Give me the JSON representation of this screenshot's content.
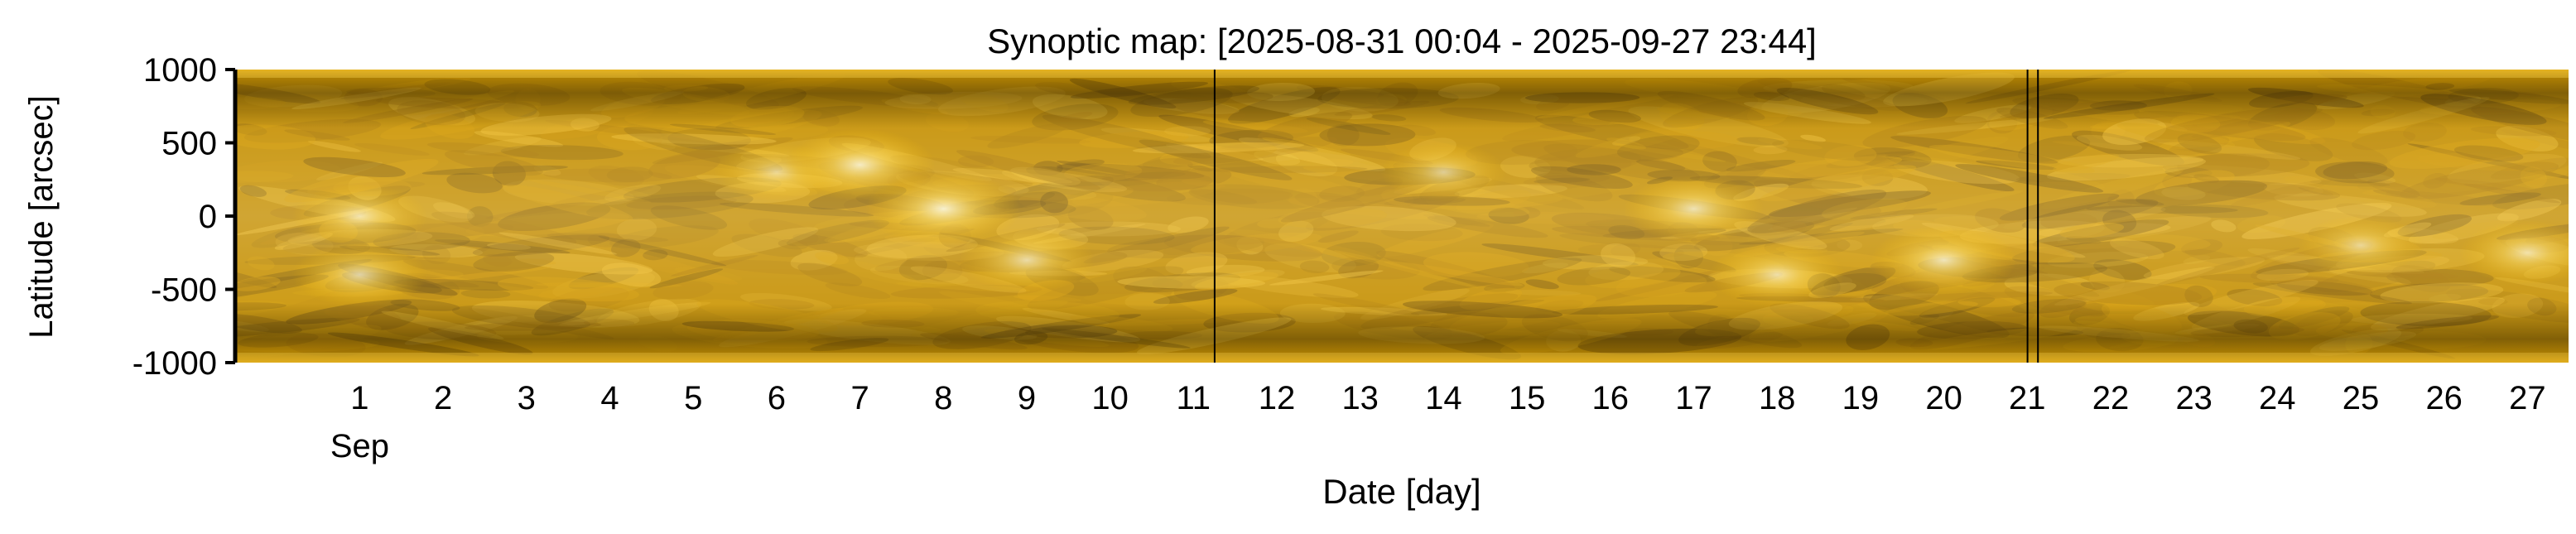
{
  "chart_data": {
    "type": "heatmap",
    "title": "Synoptic map: [2025-08-31 00:04 - 2025-09-27 23:44]",
    "xlabel": "Date [day]",
    "ylabel": "Latitude [arcsec]",
    "xlim": [
      "2025-08-31 00:04",
      "2025-09-27 23:44"
    ],
    "ylim": [
      -1000,
      1000
    ],
    "yticks": [
      1000,
      500,
      0,
      -500,
      -1000
    ],
    "xticks": [
      {
        "date": "2025-09-01",
        "label": "1",
        "sublabel": "Sep"
      },
      {
        "date": "2025-09-02",
        "label": "2"
      },
      {
        "date": "2025-09-03",
        "label": "3"
      },
      {
        "date": "2025-09-04",
        "label": "4"
      },
      {
        "date": "2025-09-05",
        "label": "5"
      },
      {
        "date": "2025-09-06",
        "label": "6"
      },
      {
        "date": "2025-09-07",
        "label": "7"
      },
      {
        "date": "2025-09-08",
        "label": "8"
      },
      {
        "date": "2025-09-09",
        "label": "9"
      },
      {
        "date": "2025-09-10",
        "label": "10"
      },
      {
        "date": "2025-09-11",
        "label": "11"
      },
      {
        "date": "2025-09-12",
        "label": "12"
      },
      {
        "date": "2025-09-13",
        "label": "13"
      },
      {
        "date": "2025-09-14",
        "label": "14"
      },
      {
        "date": "2025-09-15",
        "label": "15"
      },
      {
        "date": "2025-09-16",
        "label": "16"
      },
      {
        "date": "2025-09-17",
        "label": "17"
      },
      {
        "date": "2025-09-18",
        "label": "18"
      },
      {
        "date": "2025-09-19",
        "label": "19"
      },
      {
        "date": "2025-09-20",
        "label": "20"
      },
      {
        "date": "2025-09-21",
        "label": "21"
      },
      {
        "date": "2025-09-22",
        "label": "22"
      },
      {
        "date": "2025-09-23",
        "label": "23"
      },
      {
        "date": "2025-09-24",
        "label": "24"
      },
      {
        "date": "2025-09-25",
        "label": "25"
      },
      {
        "date": "2025-09-26",
        "label": "26"
      },
      {
        "date": "2025-09-27",
        "label": "27"
      }
    ],
    "colormap": [
      "#2e1e00",
      "#6b4a00",
      "#a87500",
      "#d89e00",
      "#f2c230",
      "#ffe99a",
      "#ffffff"
    ],
    "data_gaps": [
      "2025-09-11 18:00",
      "2025-09-21 12:00",
      "2025-09-21 15:00"
    ],
    "bright_regions": [
      {
        "date": "2025-09-01",
        "lat": 0,
        "intensity": 0.7
      },
      {
        "date": "2025-09-01",
        "lat": -400,
        "intensity": 0.7
      },
      {
        "date": "2025-09-06",
        "lat": 300,
        "intensity": 0.6
      },
      {
        "date": "2025-09-07",
        "lat": 350,
        "intensity": 0.85
      },
      {
        "date": "2025-09-08",
        "lat": 50,
        "intensity": 0.9
      },
      {
        "date": "2025-09-09",
        "lat": -300,
        "intensity": 0.7
      },
      {
        "date": "2025-09-14",
        "lat": 300,
        "intensity": 0.6
      },
      {
        "date": "2025-09-17",
        "lat": 50,
        "intensity": 0.75
      },
      {
        "date": "2025-09-18",
        "lat": -400,
        "intensity": 0.7
      },
      {
        "date": "2025-09-20",
        "lat": -300,
        "intensity": 0.8
      },
      {
        "date": "2025-09-25",
        "lat": -200,
        "intensity": 0.6
      },
      {
        "date": "2025-09-27",
        "lat": -250,
        "intensity": 0.7
      }
    ]
  }
}
